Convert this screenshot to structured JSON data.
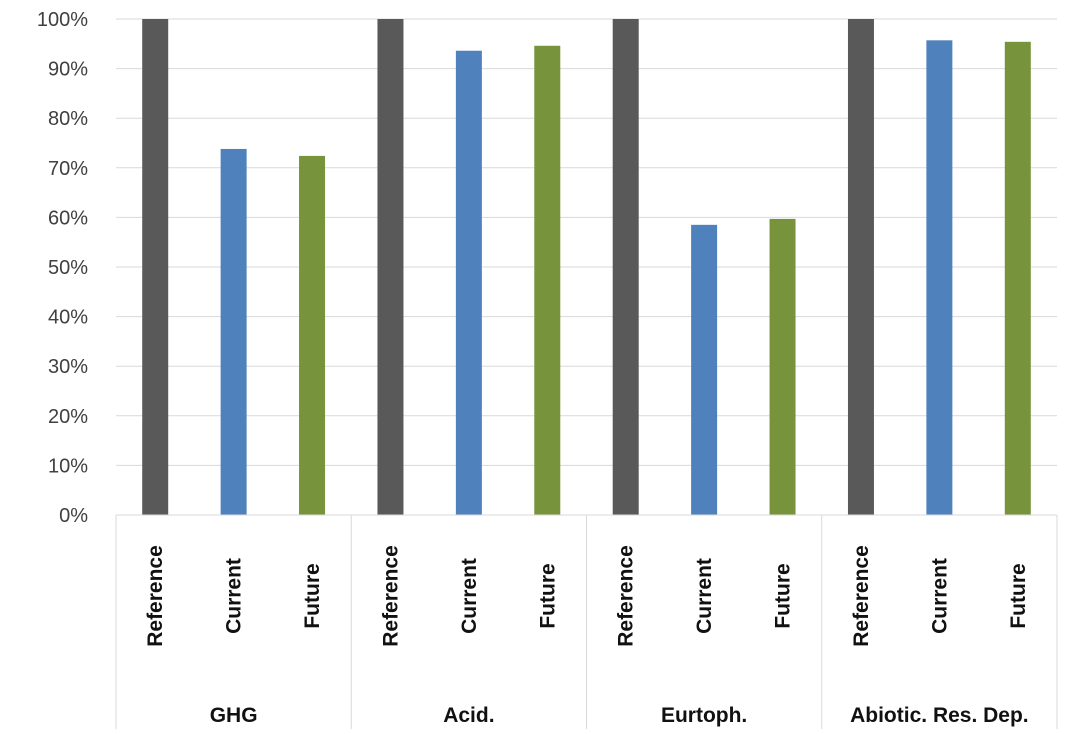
{
  "chart_data": {
    "type": "bar",
    "title": "",
    "xlabel": "",
    "ylabel": "",
    "ylim": [
      0,
      1
    ],
    "y_tick_format": "percent",
    "y_ticks": [
      "0%",
      "10%",
      "20%",
      "30%",
      "40%",
      "50%",
      "60%",
      "70%",
      "80%",
      "90%",
      "100%"
    ],
    "grid": true,
    "legend": "none",
    "groups": [
      {
        "name": "GHG",
        "bars": [
          {
            "label": "Reference",
            "value": 1.0,
            "color": "#595959"
          },
          {
            "label": "Current",
            "value": 0.738,
            "color": "#4f81bd"
          },
          {
            "label": "Future",
            "value": 0.724,
            "color": "#77933c"
          }
        ]
      },
      {
        "name": "Acid.",
        "bars": [
          {
            "label": "Reference",
            "value": 1.0,
            "color": "#595959"
          },
          {
            "label": "Current",
            "value": 0.936,
            "color": "#4f81bd"
          },
          {
            "label": "Future",
            "value": 0.946,
            "color": "#77933c"
          }
        ]
      },
      {
        "name": "Eurtoph.",
        "bars": [
          {
            "label": "Reference",
            "value": 1.0,
            "color": "#595959"
          },
          {
            "label": "Current",
            "value": 0.585,
            "color": "#4f81bd"
          },
          {
            "label": "Future",
            "value": 0.597,
            "color": "#77933c"
          }
        ]
      },
      {
        "name": "Abiotic. Res. Dep.",
        "bars": [
          {
            "label": "Reference",
            "value": 1.0,
            "color": "#595959"
          },
          {
            "label": "Current",
            "value": 0.957,
            "color": "#4f81bd"
          },
          {
            "label": "Future",
            "value": 0.954,
            "color": "#77933c"
          }
        ]
      }
    ]
  },
  "colors": {
    "reference": "#595959",
    "current": "#4f81bd",
    "future": "#77933c",
    "gridline": "#d9d9d9",
    "axis_text": "#404040"
  }
}
